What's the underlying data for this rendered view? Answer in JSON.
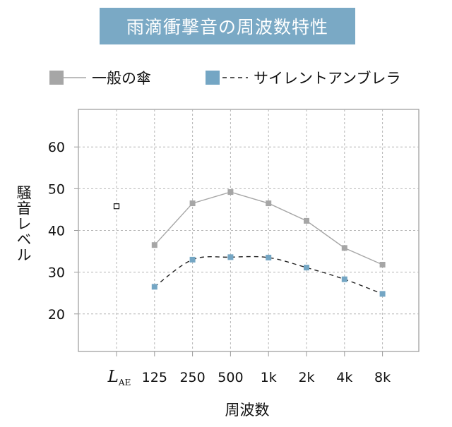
{
  "chart_data": {
    "type": "line",
    "title": "雨滴衝撃音の周波数特性",
    "ylabel": "騒音レベル",
    "xlabel": "周波数",
    "categories": [
      "L_AE",
      "125",
      "250",
      "500",
      "1k",
      "2k",
      "4k",
      "8k"
    ],
    "category_main": "L",
    "category_sub": "AE",
    "ylim": [
      11,
      69
    ],
    "yticks": [
      20,
      30,
      40,
      50,
      60
    ],
    "grid": true,
    "legend_position": "top",
    "laе_point": {
      "value": 45.8,
      "marker": "hollow-square"
    },
    "series": [
      {
        "name": "一般の傘",
        "values": [
          null,
          36.5,
          46.5,
          49.2,
          46.5,
          42.3,
          35.8,
          31.8
        ],
        "color": "#a6a6a6",
        "line_color": "#a6a6a6",
        "style": "solid"
      },
      {
        "name": "サイレントアンブレラ",
        "values": [
          null,
          26.5,
          33.0,
          33.6,
          33.5,
          31.1,
          28.3,
          24.8
        ],
        "color": "#74a6c4",
        "line_color": "#222222",
        "style": "dashed"
      }
    ]
  }
}
